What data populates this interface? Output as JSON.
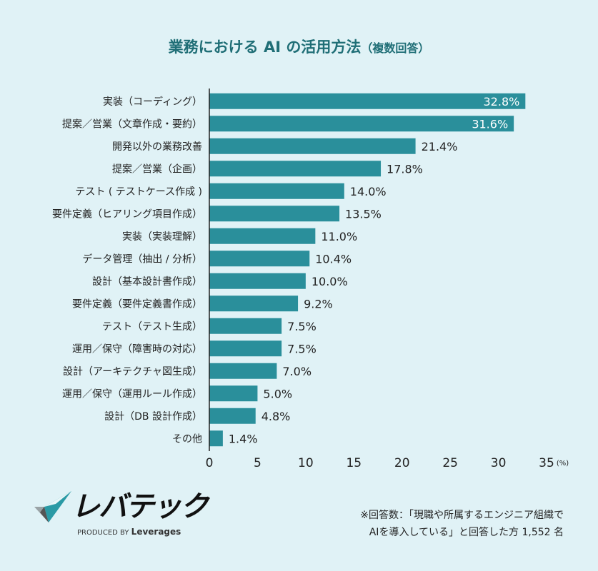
{
  "title": "業務における AI の活用方法",
  "title_sub": "（複数回答）",
  "chart_data": {
    "type": "bar",
    "orientation": "horizontal",
    "title": "業務における AI の活用方法（複数回答）",
    "categories": [
      "実装（コーディング）",
      "提案／営業（文章作成・要約）",
      "開発以外の業務改善",
      "提案／営業（企画）",
      "テスト ( テストケース作成 )",
      "要件定義（ヒアリング項目作成）",
      "実装（実装理解）",
      "データ管理（抽出 / 分析）",
      "設計（基本設計書作成）",
      "要件定義（要件定義書作成）",
      "テスト（テスト生成）",
      "運用／保守（障害時の対応）",
      "設計（アーキテクチャ図生成）",
      "運用／保守（運用ルール作成）",
      "設計（DB 設計作成）",
      "その他"
    ],
    "values": [
      32.8,
      31.6,
      21.4,
      17.8,
      14.0,
      13.5,
      11.0,
      10.4,
      10.0,
      9.2,
      7.5,
      7.5,
      7.0,
      5.0,
      4.8,
      1.4
    ],
    "xlim": [
      0,
      35
    ],
    "xticks": [
      0,
      5,
      10,
      15,
      20,
      25,
      30,
      35
    ],
    "xunit": "(%)",
    "bar_color": "#2a8f9b",
    "grid": false
  },
  "logo": {
    "name": "レバテック",
    "produced_by": "PRODUCED BY",
    "brand": "Leverages"
  },
  "note": [
    "※回答数：「現職や所属するエンジニア組織で",
    "AIを導入している」と回答した方 1,552 名"
  ]
}
